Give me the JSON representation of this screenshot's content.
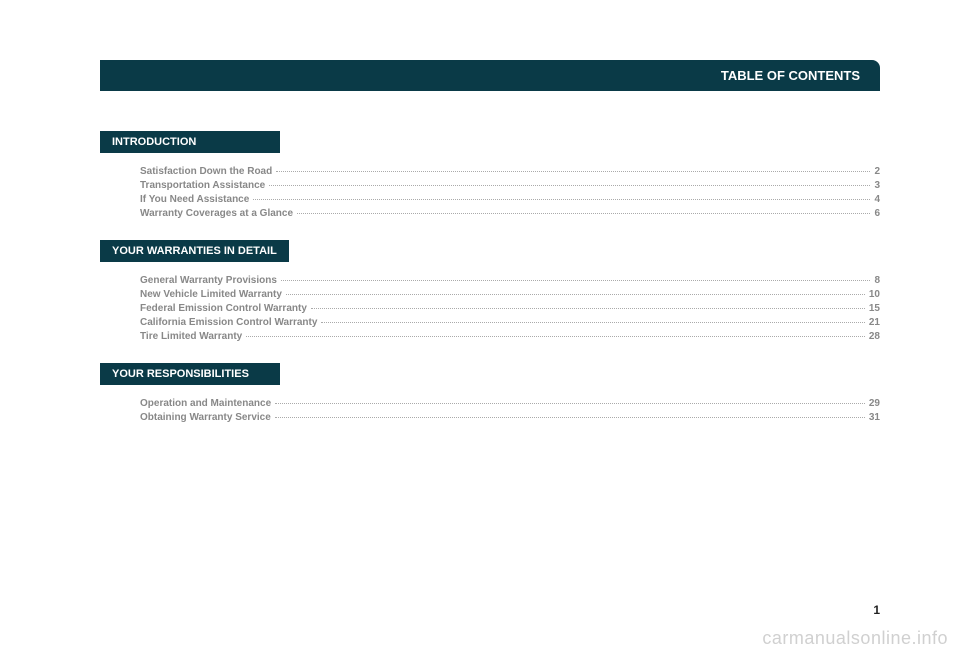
{
  "header": {
    "title": "TABLE OF CONTENTS",
    "bg_color": "#0a3a47",
    "text_color": "#ffffff"
  },
  "sections": [
    {
      "heading": "INTRODUCTION",
      "entries": [
        {
          "title": "Satisfaction Down the Road",
          "page": "2"
        },
        {
          "title": "Transportation Assistance",
          "page": "3"
        },
        {
          "title": "If You Need Assistance",
          "page": "4"
        },
        {
          "title": "Warranty Coverages at a Glance",
          "page": "6"
        }
      ]
    },
    {
      "heading": "YOUR WARRANTIES IN DETAIL",
      "entries": [
        {
          "title": "General Warranty Provisions",
          "page": "8"
        },
        {
          "title": "New Vehicle Limited Warranty",
          "page": "10"
        },
        {
          "title": "Federal Emission Control Warranty",
          "page": "15"
        },
        {
          "title": "California Emission Control Warranty",
          "page": "21"
        },
        {
          "title": "Tire Limited Warranty",
          "page": "28"
        }
      ]
    },
    {
      "heading": "YOUR RESPONSIBILITIES",
      "entries": [
        {
          "title": "Operation and Maintenance",
          "page": "29"
        },
        {
          "title": "Obtaining Warranty Service",
          "page": "31"
        }
      ]
    }
  ],
  "page_number": "1",
  "watermark": "carmanualsonline.info",
  "styles": {
    "section_header_bg": "#0a3a47",
    "section_header_color": "#ffffff",
    "entry_color": "#888888",
    "dot_color": "#aaaaaa",
    "page_bg": "#ffffff"
  }
}
